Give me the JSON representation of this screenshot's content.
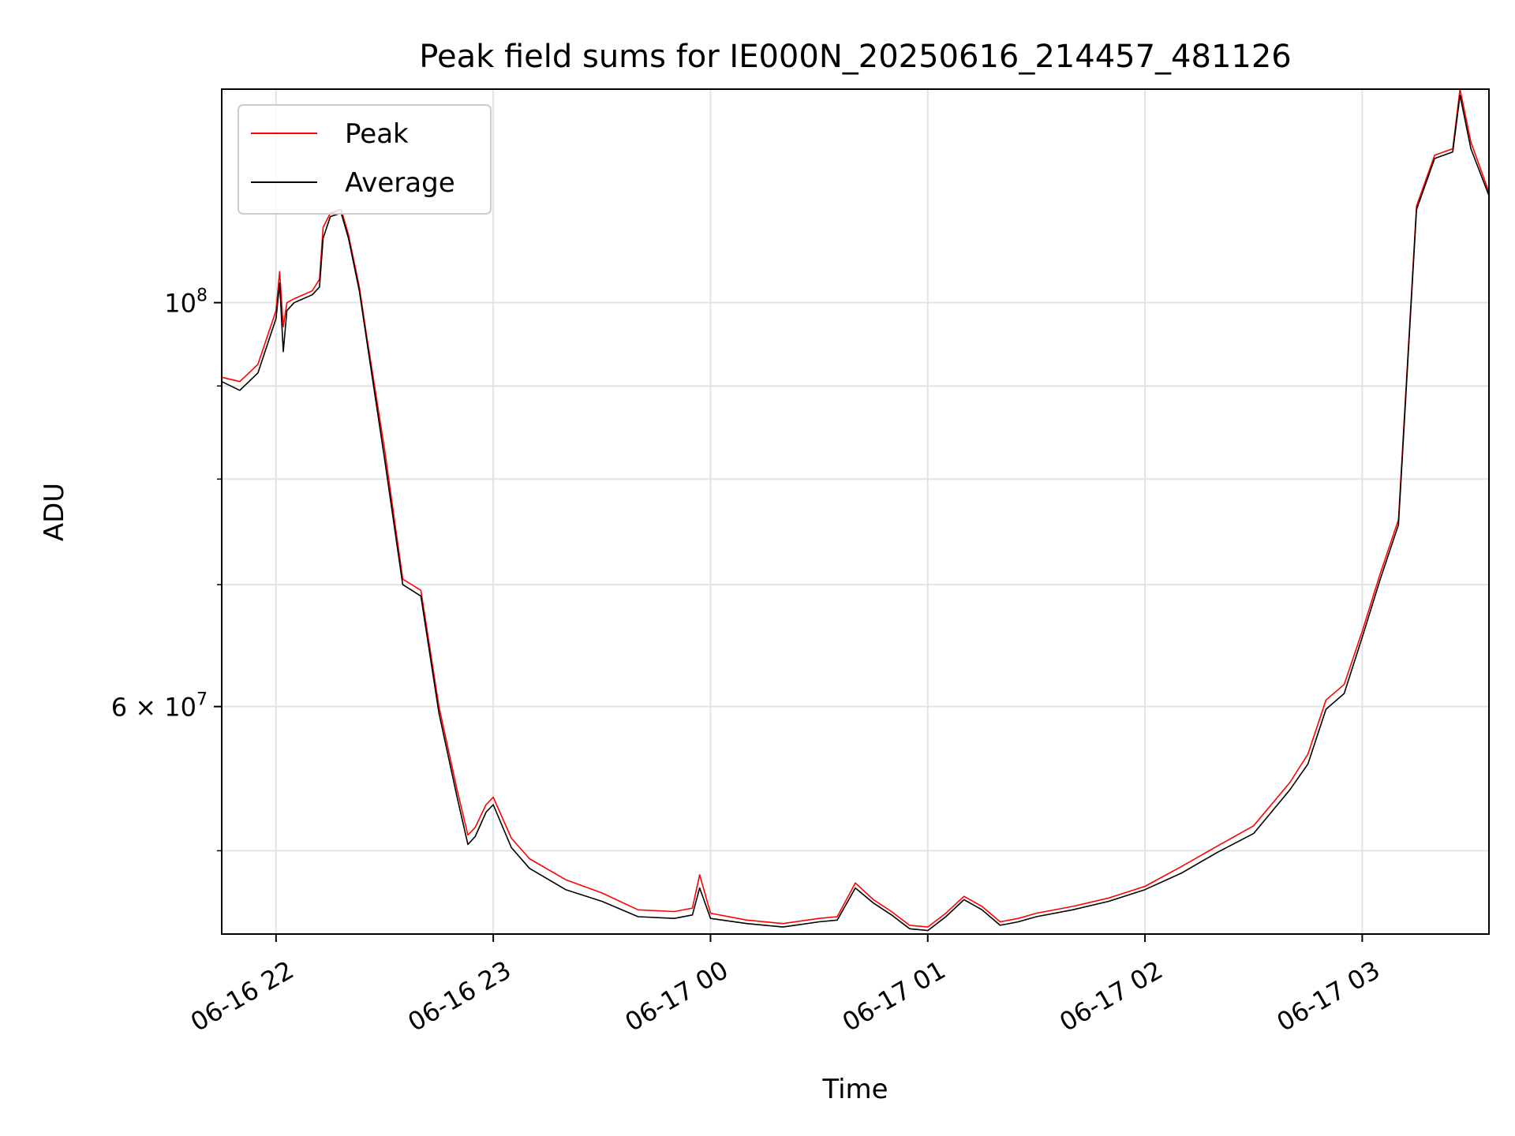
{
  "chart_data": {
    "type": "line",
    "title": "Peak field sums for IE000N_20250616_214457_481126",
    "xlabel": "Time",
    "ylabel": "ADU",
    "y_scale": "log",
    "ylim": [
      45000000,
      131000000
    ],
    "xlim": [
      "2025-06-16 21:45",
      "2025-06-17 03:35"
    ],
    "x_ticks": [
      {
        "t": "2025-06-16 22:00",
        "label": "06-16 22"
      },
      {
        "t": "2025-06-16 23:00",
        "label": "06-16 23"
      },
      {
        "t": "2025-06-17 00:00",
        "label": "06-17 00"
      },
      {
        "t": "2025-06-17 01:00",
        "label": "06-17 01"
      },
      {
        "t": "2025-06-17 02:00",
        "label": "06-17 02"
      },
      {
        "t": "2025-06-17 03:00",
        "label": "06-17 03"
      }
    ],
    "y_major_ticks": [
      {
        "v": 60000000,
        "mantissa": "6",
        "base": "10",
        "exp": "7"
      },
      {
        "v": 100000000,
        "mantissa": "",
        "base": "10",
        "exp": "8"
      }
    ],
    "y_minor_ticks": [
      50000000,
      70000000,
      80000000,
      90000000
    ],
    "grid": true,
    "legend": {
      "placement": "top-left"
    },
    "colors": {
      "Peak": "#ff0000",
      "Average": "#000000"
    },
    "series": [
      {
        "name": "Peak",
        "x": [
          "2025-06-16 21:45",
          "2025-06-16 21:50",
          "2025-06-16 21:55",
          "2025-06-16 22:00",
          "2025-06-16 22:01",
          "2025-06-16 22:02",
          "2025-06-16 22:03",
          "2025-06-16 22:05",
          "2025-06-16 22:10",
          "2025-06-16 22:12",
          "2025-06-16 22:13",
          "2025-06-16 22:15",
          "2025-06-16 22:18",
          "2025-06-16 22:20",
          "2025-06-16 22:23",
          "2025-06-16 22:25",
          "2025-06-16 22:30",
          "2025-06-16 22:35",
          "2025-06-16 22:40",
          "2025-06-16 22:45",
          "2025-06-16 22:50",
          "2025-06-16 22:53",
          "2025-06-16 22:55",
          "2025-06-16 22:58",
          "2025-06-16 23:00",
          "2025-06-16 23:05",
          "2025-06-16 23:10",
          "2025-06-16 23:20",
          "2025-06-16 23:30",
          "2025-06-16 23:40",
          "2025-06-16 23:50",
          "2025-06-16 23:55",
          "2025-06-16 23:57",
          "2025-06-17 00:00",
          "2025-06-17 00:10",
          "2025-06-17 00:20",
          "2025-06-17 00:30",
          "2025-06-17 00:35",
          "2025-06-17 00:40",
          "2025-06-17 00:45",
          "2025-06-17 00:50",
          "2025-06-17 00:55",
          "2025-06-17 01:00",
          "2025-06-17 01:05",
          "2025-06-17 01:10",
          "2025-06-17 01:15",
          "2025-06-17 01:20",
          "2025-06-17 01:25",
          "2025-06-17 01:30",
          "2025-06-17 01:40",
          "2025-06-17 01:50",
          "2025-06-17 02:00",
          "2025-06-17 02:10",
          "2025-06-17 02:20",
          "2025-06-17 02:30",
          "2025-06-17 02:40",
          "2025-06-17 02:45",
          "2025-06-17 02:50",
          "2025-06-17 02:55",
          "2025-06-17 03:00",
          "2025-06-17 03:05",
          "2025-06-17 03:10",
          "2025-06-17 03:15",
          "2025-06-17 03:20",
          "2025-06-17 03:25",
          "2025-06-17 03:27",
          "2025-06-17 03:30",
          "2025-06-17 03:35"
        ],
        "values": [
          91000000,
          90500000,
          92500000,
          99000000,
          104000000,
          97000000,
          100000000,
          100500000,
          101500000,
          103000000,
          110000000,
          112000000,
          112500000,
          109000000,
          102000000,
          96000000,
          83000000,
          70500000,
          69500000,
          60000000,
          54000000,
          51000000,
          51500000,
          53000000,
          53500000,
          50800000,
          49500000,
          48200000,
          47400000,
          46400000,
          46300000,
          46500000,
          48500000,
          46200000,
          45800000,
          45600000,
          45900000,
          46000000,
          48000000,
          47000000,
          46300000,
          45500000,
          45400000,
          46200000,
          47200000,
          46600000,
          45700000,
          45900000,
          46200000,
          46600000,
          47100000,
          47800000,
          49000000,
          50300000,
          51600000,
          54500000,
          56500000,
          60500000,
          61700000,
          66000000,
          71000000,
          76000000,
          113000000,
          120500000,
          121500000,
          131000000,
          122500000,
          115000000
        ]
      },
      {
        "name": "Average",
        "x": [
          "2025-06-16 21:45",
          "2025-06-16 21:50",
          "2025-06-16 21:55",
          "2025-06-16 22:00",
          "2025-06-16 22:01",
          "2025-06-16 22:02",
          "2025-06-16 22:03",
          "2025-06-16 22:05",
          "2025-06-16 22:10",
          "2025-06-16 22:12",
          "2025-06-16 22:13",
          "2025-06-16 22:15",
          "2025-06-16 22:18",
          "2025-06-16 22:20",
          "2025-06-16 22:23",
          "2025-06-16 22:25",
          "2025-06-16 22:30",
          "2025-06-16 22:35",
          "2025-06-16 22:40",
          "2025-06-16 22:45",
          "2025-06-16 22:50",
          "2025-06-16 22:53",
          "2025-06-16 22:55",
          "2025-06-16 22:58",
          "2025-06-16 23:00",
          "2025-06-16 23:05",
          "2025-06-16 23:10",
          "2025-06-16 23:20",
          "2025-06-16 23:30",
          "2025-06-16 23:40",
          "2025-06-16 23:50",
          "2025-06-16 23:55",
          "2025-06-16 23:57",
          "2025-06-17 00:00",
          "2025-06-17 00:10",
          "2025-06-17 00:20",
          "2025-06-17 00:30",
          "2025-06-17 00:35",
          "2025-06-17 00:40",
          "2025-06-17 00:45",
          "2025-06-17 00:50",
          "2025-06-17 00:55",
          "2025-06-17 01:00",
          "2025-06-17 01:05",
          "2025-06-17 01:10",
          "2025-06-17 01:15",
          "2025-06-17 01:20",
          "2025-06-17 01:25",
          "2025-06-17 01:30",
          "2025-06-17 01:40",
          "2025-06-17 01:50",
          "2025-06-17 02:00",
          "2025-06-17 02:10",
          "2025-06-17 02:20",
          "2025-06-17 02:30",
          "2025-06-17 02:40",
          "2025-06-17 02:45",
          "2025-06-17 02:50",
          "2025-06-17 02:55",
          "2025-06-17 03:00",
          "2025-06-17 03:05",
          "2025-06-17 03:10",
          "2025-06-17 03:15",
          "2025-06-17 03:20",
          "2025-06-17 03:25",
          "2025-06-17 03:27",
          "2025-06-17 03:30",
          "2025-06-17 03:35"
        ],
        "values": [
          90500000,
          89500000,
          91500000,
          98000000,
          102500000,
          94000000,
          99000000,
          100000000,
          101000000,
          102000000,
          108500000,
          111500000,
          112000000,
          108500000,
          101500000,
          95500000,
          82000000,
          70000000,
          69000000,
          59500000,
          53500000,
          50400000,
          50900000,
          52500000,
          53000000,
          50200000,
          48900000,
          47600000,
          46900000,
          46000000,
          45900000,
          46100000,
          47700000,
          45900000,
          45600000,
          45400000,
          45700000,
          45800000,
          47700000,
          46800000,
          46100000,
          45300000,
          45200000,
          46000000,
          47000000,
          46400000,
          45500000,
          45700000,
          46000000,
          46400000,
          46900000,
          47600000,
          48600000,
          49900000,
          51100000,
          54000000,
          55800000,
          59800000,
          61000000,
          65500000,
          70500000,
          75500000,
          112500000,
          120000000,
          121000000,
          130000000,
          121500000,
          114500000
        ]
      }
    ]
  }
}
